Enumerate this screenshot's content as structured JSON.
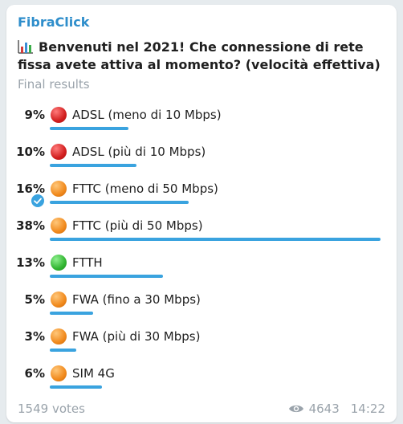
{
  "channel": {
    "name": "FibraClick"
  },
  "poll": {
    "question": "Benvenuti nel 2021! Che connessione di rete fissa avete attiva al momento? (velocità effettiva)",
    "status": "Final results",
    "options": [
      {
        "percent": "9%",
        "label": "ADSL (meno di 10 Mbps)",
        "dot": "red-circle",
        "fraction": 0.09
      },
      {
        "percent": "10%",
        "label": "ADSL (più di 10 Mbps)",
        "dot": "red-circle",
        "fraction": 0.1
      },
      {
        "percent": "16%",
        "label": "FTTC (meno di 50 Mbps)",
        "dot": "orange-circle",
        "fraction": 0.16,
        "chosen": true
      },
      {
        "percent": "38%",
        "label": "FTTC (più di 50 Mbps)",
        "dot": "orange-circle",
        "fraction": 0.38
      },
      {
        "percent": "13%",
        "label": "FTTH",
        "dot": "green-circle",
        "fraction": 0.13
      },
      {
        "percent": "5%",
        "label": "FWA (fino a 30 Mbps)",
        "dot": "orange-circle",
        "fraction": 0.05
      },
      {
        "percent": "3%",
        "label": "FWA (più di 30 Mbps)",
        "dot": "orange-circle",
        "fraction": 0.03
      },
      {
        "percent": "6%",
        "label": "SIM 4G",
        "dot": "orange-circle",
        "fraction": 0.06
      }
    ],
    "votes": "1549 votes"
  },
  "footer": {
    "views": "4643",
    "time": "14:22"
  },
  "colors": {
    "accent": "#3aa3df",
    "channel": "#2f8ecb",
    "muted": "#9aa3ab"
  }
}
